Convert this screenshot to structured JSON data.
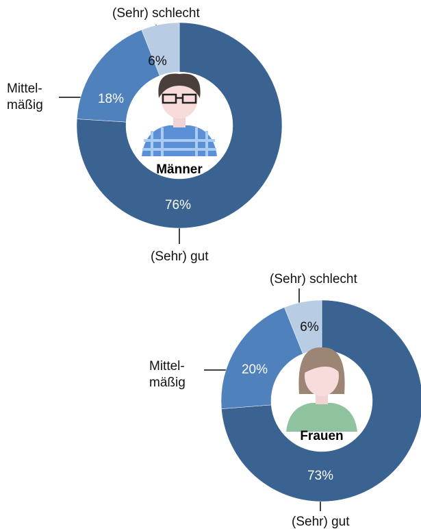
{
  "chart_data": [
    {
      "type": "donut",
      "center_label": "Männer",
      "categories": [
        "(Sehr) gut",
        "Mittel-\nmäßig",
        "(Sehr) schlecht"
      ],
      "values": [
        76,
        18,
        6
      ],
      "value_labels": [
        "76%",
        "18%",
        "6%"
      ],
      "colors": [
        "#3a6392",
        "#4f81bd",
        "#b8cce4"
      ]
    },
    {
      "type": "donut",
      "center_label": "Frauen",
      "categories": [
        "(Sehr) gut",
        "Mittel-\nmäßig",
        "(Sehr) schlecht"
      ],
      "values": [
        73,
        20,
        6
      ],
      "value_labels": [
        "73%",
        "20%",
        "6%"
      ],
      "colors": [
        "#3a6392",
        "#4f81bd",
        "#b8cce4"
      ]
    }
  ]
}
